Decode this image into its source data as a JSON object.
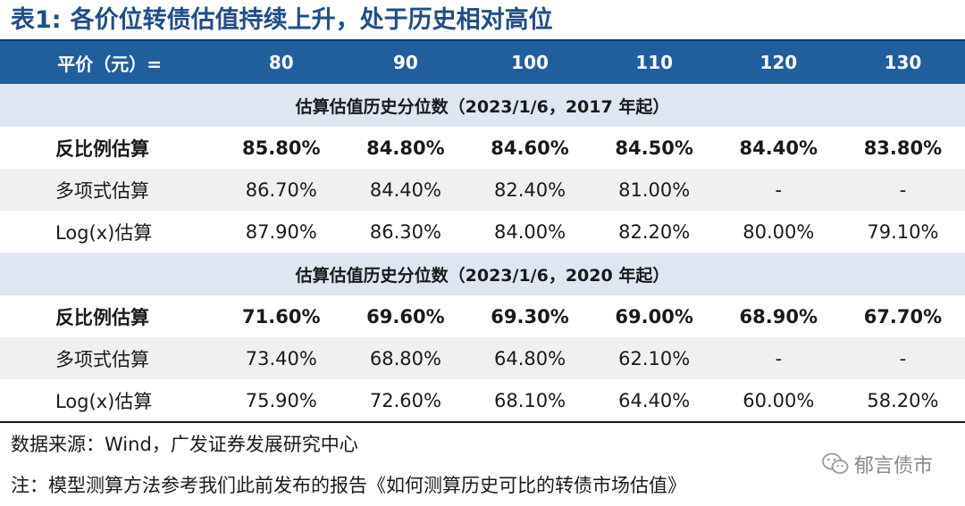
{
  "title": {
    "label": "表1:",
    "text": "各价位转债估值持续上升，处于历史相对高位"
  },
  "header": {
    "first": "平价（元）=",
    "prices": [
      "80",
      "90",
      "100",
      "110",
      "120",
      "130"
    ]
  },
  "sections": [
    {
      "caption": "估算估值历史分位数（2023/1/6，2017 年起）",
      "rows": [
        {
          "label": "反比例估算",
          "values": [
            "85.80%",
            "84.80%",
            "84.60%",
            "84.50%",
            "84.40%",
            "83.80%"
          ]
        },
        {
          "label": "多项式估算",
          "values": [
            "86.70%",
            "84.40%",
            "82.40%",
            "81.00%",
            "-",
            "-"
          ]
        },
        {
          "label": "Log(x)估算",
          "values": [
            "87.90%",
            "86.30%",
            "84.00%",
            "82.20%",
            "80.00%",
            "79.10%"
          ]
        }
      ]
    },
    {
      "caption": "估算估值历史分位数（2023/1/6，2020 年起）",
      "rows": [
        {
          "label": "反比例估算",
          "values": [
            "71.60%",
            "69.60%",
            "69.30%",
            "69.00%",
            "68.90%",
            "67.70%"
          ]
        },
        {
          "label": "多项式估算",
          "values": [
            "73.40%",
            "68.80%",
            "64.80%",
            "62.10%",
            "-",
            "-"
          ]
        },
        {
          "label": "Log(x)估算",
          "values": [
            "75.90%",
            "72.60%",
            "68.10%",
            "64.40%",
            "60.00%",
            "58.20%"
          ]
        }
      ]
    }
  ],
  "source": "数据来源：Wind，广发证券发展研究中心",
  "note": "注：模型测算方法参考我们此前发布的报告《如何测算历史可比的转债市场估值》",
  "watermark": "郁言债市",
  "colors": {
    "title": "#1f4e8c",
    "header_bg": "#1f5f9e",
    "section_bg": "#dde6f1",
    "alt_row": "#f0f0f0"
  }
}
